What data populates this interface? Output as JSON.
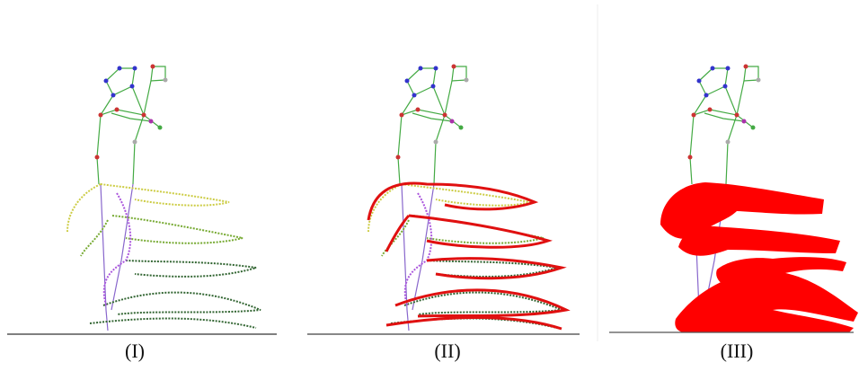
{
  "panels": [
    {
      "label": "(I)"
    },
    {
      "label": "(II)"
    },
    {
      "label": "(III)"
    }
  ]
}
